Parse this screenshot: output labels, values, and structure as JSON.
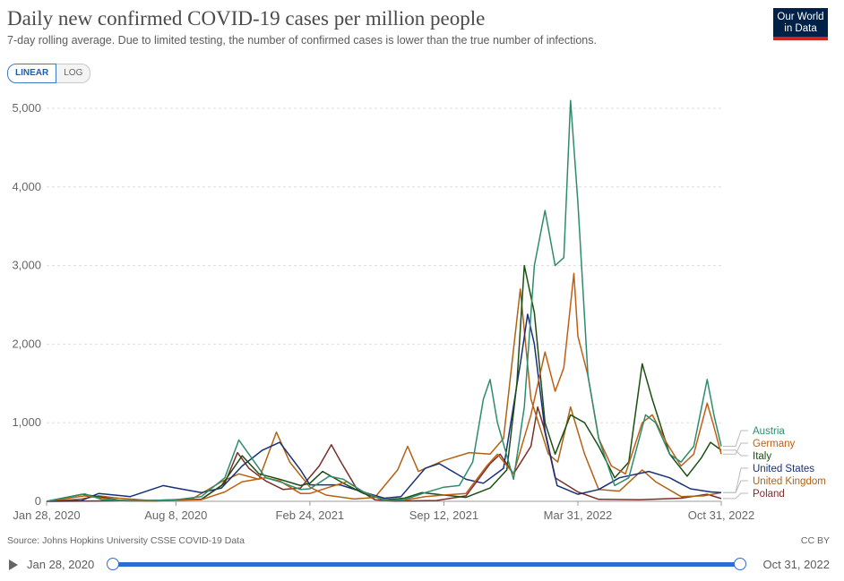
{
  "header": {
    "title": "Daily new confirmed COVID-19 cases per million people",
    "subtitle": "7-day rolling average. Due to limited testing, the number of confirmed cases is lower than the true number of infections.",
    "logo_line1": "Our World",
    "logo_line2": "in Data"
  },
  "scale_toggle": {
    "linear_label": "LINEAR",
    "log_label": "LOG",
    "selected": "LINEAR"
  },
  "footer": {
    "source": "Source: Johns Hopkins University CSSE COVID-19 Data",
    "license": "CC BY"
  },
  "timeline": {
    "start_label": "Jan 28, 2020",
    "end_label": "Oct 31, 2022",
    "start_position": 0,
    "end_position": 1
  },
  "chart_data": {
    "type": "line",
    "title": "Daily new confirmed COVID-19 cases per million people",
    "subtitle": "7-day rolling average. Due to limited testing, the number of confirmed cases is lower than the true number of infections.",
    "x_start": "2020-01-28",
    "x_end": "2022-10-31",
    "x_ticks": [
      {
        "date": "2020-01-28",
        "label": "Jan 28, 2020"
      },
      {
        "date": "2020-08-08",
        "label": "Aug 8, 2020"
      },
      {
        "date": "2021-02-24",
        "label": "Feb 24, 2021"
      },
      {
        "date": "2021-09-12",
        "label": "Sep 12, 2021"
      },
      {
        "date": "2022-03-31",
        "label": "Mar 31, 2022"
      },
      {
        "date": "2022-10-31",
        "label": "Oct 31, 2022"
      }
    ],
    "ylim": [
      0,
      5000
    ],
    "y_ticks": [
      {
        "value": 0,
        "label": "0"
      },
      {
        "value": 1000,
        "label": "1,000"
      },
      {
        "value": 2000,
        "label": "2,000"
      },
      {
        "value": 3000,
        "label": "3,000"
      },
      {
        "value": 4000,
        "label": "4,000"
      },
      {
        "value": 5000,
        "label": "5,000"
      }
    ],
    "grid": true,
    "legend": "right, labels at line ends",
    "series": [
      {
        "name": "Poland",
        "color": "#7a2e2b",
        "points": [
          [
            "2020-01-28",
            0
          ],
          [
            "2020-03-20",
            3
          ],
          [
            "2020-05-15",
            8
          ],
          [
            "2020-07-15",
            12
          ],
          [
            "2020-09-15",
            25
          ],
          [
            "2020-10-20",
            230
          ],
          [
            "2020-11-08",
            620
          ],
          [
            "2020-11-25",
            420
          ],
          [
            "2020-12-20",
            260
          ],
          [
            "2021-01-15",
            150
          ],
          [
            "2021-02-10",
            170
          ],
          [
            "2021-03-10",
            450
          ],
          [
            "2021-03-28",
            720
          ],
          [
            "2021-04-10",
            520
          ],
          [
            "2021-05-05",
            160
          ],
          [
            "2021-06-01",
            20
          ],
          [
            "2021-07-01",
            3
          ],
          [
            "2021-09-01",
            10
          ],
          [
            "2021-10-15",
            70
          ],
          [
            "2021-11-20",
            480
          ],
          [
            "2021-12-05",
            600
          ],
          [
            "2021-12-25",
            350
          ],
          [
            "2022-01-20",
            700
          ],
          [
            "2022-01-30",
            1200
          ],
          [
            "2022-02-08",
            950
          ],
          [
            "2022-02-25",
            300
          ],
          [
            "2022-03-31",
            120
          ],
          [
            "2022-05-01",
            25
          ],
          [
            "2022-07-01",
            20
          ],
          [
            "2022-09-01",
            40
          ],
          [
            "2022-10-10",
            90
          ],
          [
            "2022-10-31",
            35
          ]
        ]
      },
      {
        "name": "United Kingdom",
        "color": "#b16214",
        "points": [
          [
            "2020-01-28",
            0
          ],
          [
            "2020-03-20",
            30
          ],
          [
            "2020-04-15",
            70
          ],
          [
            "2020-05-15",
            40
          ],
          [
            "2020-07-01",
            10
          ],
          [
            "2020-09-01",
            30
          ],
          [
            "2020-10-15",
            250
          ],
          [
            "2020-11-10",
            350
          ],
          [
            "2020-12-10",
            280
          ],
          [
            "2021-01-05",
            880
          ],
          [
            "2021-01-25",
            500
          ],
          [
            "2021-02-24",
            180
          ],
          [
            "2021-03-20",
            80
          ],
          [
            "2021-05-01",
            30
          ],
          [
            "2021-06-01",
            50
          ],
          [
            "2021-07-05",
            400
          ],
          [
            "2021-07-20",
            700
          ],
          [
            "2021-08-05",
            380
          ],
          [
            "2021-09-12",
            520
          ],
          [
            "2021-10-20",
            620
          ],
          [
            "2021-11-20",
            600
          ],
          [
            "2021-12-10",
            800
          ],
          [
            "2022-01-04",
            2700
          ],
          [
            "2022-01-20",
            1300
          ],
          [
            "2022-02-15",
            600
          ],
          [
            "2022-03-01",
            500
          ],
          [
            "2022-03-20",
            1200
          ],
          [
            "2022-04-10",
            600
          ],
          [
            "2022-05-01",
            150
          ],
          [
            "2022-06-01",
            130
          ],
          [
            "2022-07-05",
            400
          ],
          [
            "2022-07-25",
            250
          ],
          [
            "2022-09-01",
            60
          ],
          [
            "2022-10-05",
            70
          ],
          [
            "2022-10-31",
            110
          ]
        ]
      },
      {
        "name": "United States",
        "color": "#18307a",
        "points": [
          [
            "2020-01-28",
            0
          ],
          [
            "2020-03-20",
            10
          ],
          [
            "2020-04-15",
            100
          ],
          [
            "2020-06-01",
            60
          ],
          [
            "2020-07-20",
            200
          ],
          [
            "2020-08-08",
            170
          ],
          [
            "2020-09-15",
            110
          ],
          [
            "2020-10-15",
            170
          ],
          [
            "2020-11-15",
            450
          ],
          [
            "2020-12-15",
            650
          ],
          [
            "2021-01-10",
            750
          ],
          [
            "2021-02-10",
            400
          ],
          [
            "2021-02-24",
            210
          ],
          [
            "2021-04-10",
            210
          ],
          [
            "2021-05-10",
            130
          ],
          [
            "2021-06-15",
            40
          ],
          [
            "2021-07-10",
            60
          ],
          [
            "2021-08-15",
            420
          ],
          [
            "2021-09-05",
            480
          ],
          [
            "2021-10-15",
            280
          ],
          [
            "2021-11-10",
            230
          ],
          [
            "2021-12-10",
            420
          ],
          [
            "2022-01-05",
            1800
          ],
          [
            "2022-01-15",
            2380
          ],
          [
            "2022-01-25",
            2000
          ],
          [
            "2022-02-10",
            900
          ],
          [
            "2022-02-28",
            200
          ],
          [
            "2022-03-31",
            90
          ],
          [
            "2022-05-01",
            150
          ],
          [
            "2022-06-01",
            300
          ],
          [
            "2022-07-15",
            380
          ],
          [
            "2022-08-15",
            300
          ],
          [
            "2022-09-15",
            160
          ],
          [
            "2022-10-15",
            120
          ],
          [
            "2022-10-31",
            110
          ]
        ]
      },
      {
        "name": "Italy",
        "color": "#1c4e12",
        "points": [
          [
            "2020-01-28",
            0
          ],
          [
            "2020-03-21",
            90
          ],
          [
            "2020-04-15",
            60
          ],
          [
            "2020-05-15",
            15
          ],
          [
            "2020-07-01",
            3
          ],
          [
            "2020-08-08",
            15
          ],
          [
            "2020-09-15",
            25
          ],
          [
            "2020-10-15",
            200
          ],
          [
            "2020-11-15",
            580
          ],
          [
            "2020-12-10",
            350
          ],
          [
            "2021-01-10",
            280
          ],
          [
            "2021-02-10",
            200
          ],
          [
            "2021-02-24",
            230
          ],
          [
            "2021-03-15",
            380
          ],
          [
            "2021-04-15",
            230
          ],
          [
            "2021-05-15",
            100
          ],
          [
            "2021-06-15",
            20
          ],
          [
            "2021-07-15",
            40
          ],
          [
            "2021-08-10",
            110
          ],
          [
            "2021-09-12",
            80
          ],
          [
            "2021-10-15",
            50
          ],
          [
            "2021-11-20",
            170
          ],
          [
            "2021-12-15",
            400
          ],
          [
            "2021-12-30",
            1500
          ],
          [
            "2022-01-10",
            3000
          ],
          [
            "2022-01-25",
            2400
          ],
          [
            "2022-02-10",
            1000
          ],
          [
            "2022-02-25",
            600
          ],
          [
            "2022-03-20",
            1100
          ],
          [
            "2022-04-10",
            1000
          ],
          [
            "2022-05-01",
            700
          ],
          [
            "2022-05-25",
            300
          ],
          [
            "2022-06-15",
            500
          ],
          [
            "2022-07-05",
            1750
          ],
          [
            "2022-07-20",
            1300
          ],
          [
            "2022-08-15",
            600
          ],
          [
            "2022-09-10",
            320
          ],
          [
            "2022-10-01",
            550
          ],
          [
            "2022-10-15",
            750
          ],
          [
            "2022-10-31",
            650
          ]
        ]
      },
      {
        "name": "Germany",
        "color": "#c15e13",
        "points": [
          [
            "2020-01-28",
            0
          ],
          [
            "2020-03-25",
            70
          ],
          [
            "2020-04-20",
            40
          ],
          [
            "2020-05-15",
            10
          ],
          [
            "2020-07-01",
            5
          ],
          [
            "2020-08-08",
            15
          ],
          [
            "2020-09-15",
            20
          ],
          [
            "2020-10-20",
            120
          ],
          [
            "2020-11-15",
            250
          ],
          [
            "2020-12-20",
            300
          ],
          [
            "2021-01-10",
            260
          ],
          [
            "2021-02-10",
            100
          ],
          [
            "2021-02-24",
            100
          ],
          [
            "2021-03-25",
            180
          ],
          [
            "2021-04-20",
            250
          ],
          [
            "2021-05-15",
            120
          ],
          [
            "2021-06-15",
            15
          ],
          [
            "2021-07-15",
            15
          ],
          [
            "2021-08-15",
            60
          ],
          [
            "2021-09-12",
            80
          ],
          [
            "2021-10-15",
            100
          ],
          [
            "2021-11-15",
            450
          ],
          [
            "2021-12-01",
            600
          ],
          [
            "2021-12-25",
            350
          ],
          [
            "2022-01-20",
            1100
          ],
          [
            "2022-02-10",
            1900
          ],
          [
            "2022-02-25",
            1400
          ],
          [
            "2022-03-10",
            1700
          ],
          [
            "2022-03-25",
            2900
          ],
          [
            "2022-03-31",
            2100
          ],
          [
            "2022-04-15",
            1600
          ],
          [
            "2022-05-01",
            800
          ],
          [
            "2022-05-20",
            450
          ],
          [
            "2022-06-10",
            350
          ],
          [
            "2022-07-05",
            1000
          ],
          [
            "2022-07-20",
            1100
          ],
          [
            "2022-08-10",
            750
          ],
          [
            "2022-09-01",
            450
          ],
          [
            "2022-09-20",
            600
          ],
          [
            "2022-10-10",
            1250
          ],
          [
            "2022-10-20",
            950
          ],
          [
            "2022-10-31",
            600
          ]
        ]
      },
      {
        "name": "Austria",
        "color": "#2d8c6b",
        "points": [
          [
            "2020-01-28",
            0
          ],
          [
            "2020-03-25",
            95
          ],
          [
            "2020-04-20",
            20
          ],
          [
            "2020-06-01",
            5
          ],
          [
            "2020-07-15",
            15
          ],
          [
            "2020-08-08",
            20
          ],
          [
            "2020-09-15",
            60
          ],
          [
            "2020-10-20",
            300
          ],
          [
            "2020-11-10",
            780
          ],
          [
            "2020-11-25",
            600
          ],
          [
            "2020-12-20",
            300
          ],
          [
            "2021-01-10",
            250
          ],
          [
            "2021-02-10",
            150
          ],
          [
            "2021-02-24",
            160
          ],
          [
            "2021-03-25",
            320
          ],
          [
            "2021-04-15",
            280
          ],
          [
            "2021-05-15",
            120
          ],
          [
            "2021-06-15",
            10
          ],
          [
            "2021-07-15",
            20
          ],
          [
            "2021-08-15",
            110
          ],
          [
            "2021-09-12",
            180
          ],
          [
            "2021-10-05",
            200
          ],
          [
            "2021-10-25",
            500
          ],
          [
            "2021-11-10",
            1300
          ],
          [
            "2021-11-20",
            1550
          ],
          [
            "2021-12-01",
            1000
          ],
          [
            "2021-12-25",
            280
          ],
          [
            "2022-01-10",
            1200
          ],
          [
            "2022-01-25",
            3000
          ],
          [
            "2022-02-10",
            3700
          ],
          [
            "2022-02-25",
            3000
          ],
          [
            "2022-03-10",
            3100
          ],
          [
            "2022-03-20",
            5100
          ],
          [
            "2022-03-31",
            3800
          ],
          [
            "2022-04-15",
            1600
          ],
          [
            "2022-05-01",
            800
          ],
          [
            "2022-05-25",
            200
          ],
          [
            "2022-06-15",
            300
          ],
          [
            "2022-07-10",
            1100
          ],
          [
            "2022-07-25",
            1000
          ],
          [
            "2022-08-15",
            600
          ],
          [
            "2022-09-01",
            500
          ],
          [
            "2022-09-20",
            700
          ],
          [
            "2022-10-10",
            1550
          ],
          [
            "2022-10-20",
            1100
          ],
          [
            "2022-10-31",
            700
          ]
        ]
      }
    ]
  }
}
